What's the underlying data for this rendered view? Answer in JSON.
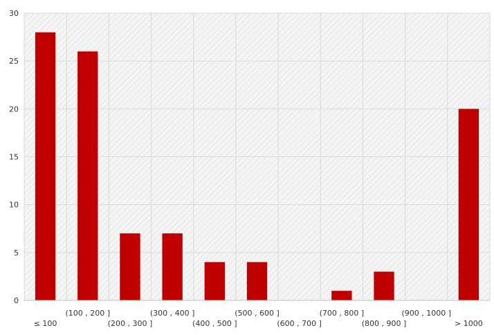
{
  "chart_data": {
    "type": "bar",
    "categories": [
      "≤ 100",
      "(100 , 200 ]",
      "(200 , 300 ]",
      "(300 , 400 ]",
      "(400 , 500 ]",
      "(500 , 600 ]",
      "(600 , 700 ]",
      "(700 , 800 ]",
      "(800 , 900 ]",
      "(900 , 1000 ]",
      "> 1000"
    ],
    "values": [
      28,
      26,
      7,
      7,
      4,
      4,
      0,
      1,
      3,
      0,
      20
    ],
    "title": "",
    "xlabel": "",
    "ylabel": "",
    "ylim": [
      0,
      30
    ],
    "yticks": [
      0,
      5,
      10,
      15,
      20,
      25,
      30
    ],
    "grid": true,
    "legend": "none",
    "bar_color": "#c00000",
    "plot_background": "hatched-light-gray",
    "gridline_color": "#d9d9d9"
  }
}
